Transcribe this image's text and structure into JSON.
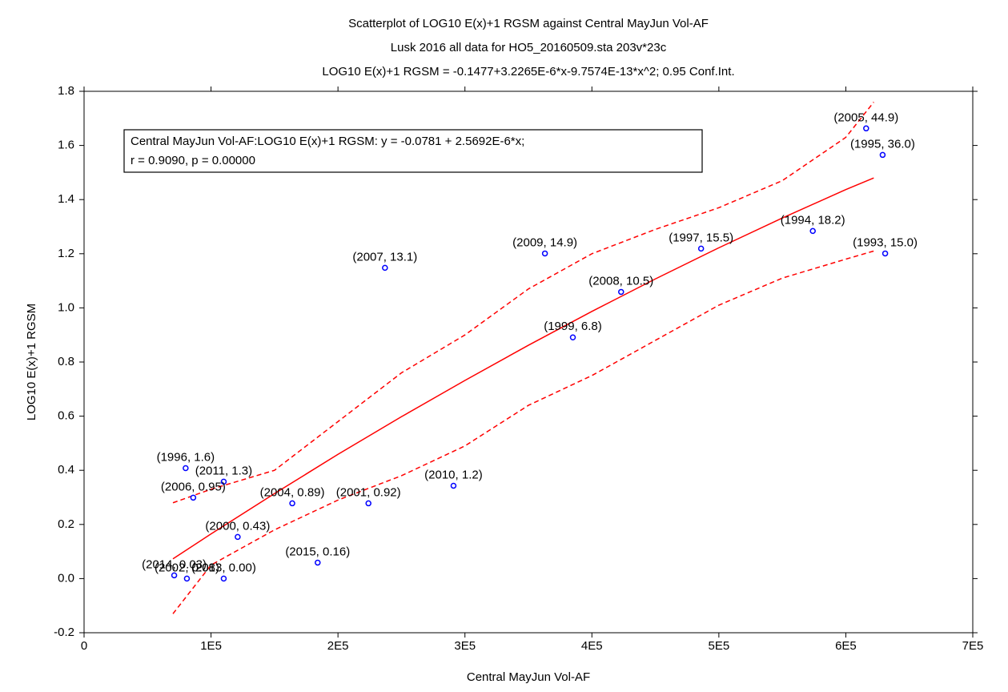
{
  "chart_data": {
    "type": "scatter",
    "title": "Scatterplot of LOG10 E(x)+1 RGSM against Central MayJun Vol-AF",
    "subtitle": "Lusk 2016 all data for HO5_20160509.sta 203v*23c",
    "subtitle2": "LOG10 E(x)+1 RGSM = -0.1477+3.2265E-6*x-9.7574E-13*x^2; 0.95 Conf.Int.",
    "x_label": "Central MayJun Vol-AF",
    "y_label": "LOG10 E(x)+1 RGSM",
    "legend_lines": [
      "Central MayJun Vol-AF:LOG10 E(x)+1 RGSM:   y = -0.0781 + 2.5692E-6*x;",
      "r = 0.9090, p = 0.00000"
    ],
    "point_color": "#0000ff",
    "line_color": "#ff0000",
    "x": [
      616000,
      629000,
      574000,
      631000,
      486000,
      363000,
      237000,
      423000,
      385000,
      291000,
      224000,
      164000,
      121000,
      184000,
      80000,
      110000,
      86000,
      81000,
      71000,
      110000
    ],
    "values": [
      1.663,
      1.565,
      1.284,
      1.201,
      1.219,
      1.201,
      1.148,
      1.059,
      0.891,
      0.343,
      0.278,
      0.278,
      0.154,
      0.059,
      0.408,
      0.358,
      0.299,
      0.0,
      0.012,
      0.0
    ],
    "point_labels": [
      "(2005, 44.9)",
      "(1995, 36.0)",
      "(1994, 18.2)",
      "(1993, 15.0)",
      "(1997, 15.5)",
      "(2009, 14.9)",
      "(2007, 13.1)",
      "(2008, 10.5)",
      "(1999, 6.8)",
      "(2010, 1.2)",
      "(2001, 0.92)",
      "(2004, 0.89)",
      "(2000, 0.43)",
      "(2015, 0.16)",
      "(1996, 1.6)",
      "(2011, 1.3)",
      "(2006, 0.95)",
      "(2002, 0.08)",
      "(2014, 0.03)",
      "(2013, 0.00)"
    ],
    "fit": {
      "x": [
        70000,
        100000,
        150000,
        200000,
        250000,
        300000,
        350000,
        400000,
        450000,
        500000,
        550000,
        600000,
        622000
      ],
      "values": [
        0.073,
        0.165,
        0.314,
        0.459,
        0.598,
        0.732,
        0.862,
        0.987,
        1.107,
        1.222,
        1.332,
        1.437,
        1.48
      ],
      "upper": [
        0.28,
        0.33,
        0.4,
        0.58,
        0.76,
        0.9,
        1.07,
        1.2,
        1.29,
        1.37,
        1.47,
        1.63,
        1.76
      ],
      "lower": [
        -0.13,
        0.05,
        0.18,
        0.29,
        0.38,
        0.49,
        0.64,
        0.75,
        0.88,
        1.01,
        1.11,
        1.18,
        1.21
      ]
    },
    "xlim": [
      0,
      700000
    ],
    "ylim": [
      -0.2,
      1.8
    ],
    "xticks": [
      0,
      {
        "value": 100000,
        "label": "1E5"
      },
      {
        "value": 200000,
        "label": "2E5"
      },
      {
        "value": 300000,
        "label": "3E5"
      },
      {
        "value": 400000,
        "label": "4E5"
      },
      {
        "value": 500000,
        "label": "5E5"
      },
      {
        "value": 600000,
        "label": "6E5"
      },
      {
        "value": 700000,
        "label": "7E5"
      }
    ],
    "yticks": [
      -0.2,
      {
        "value": 0,
        "label": "0.0"
      },
      0.2,
      0.4,
      0.6,
      0.8,
      {
        "value": 1,
        "label": "1.0"
      },
      1.2,
      1.4,
      1.6,
      1.8
    ]
  }
}
